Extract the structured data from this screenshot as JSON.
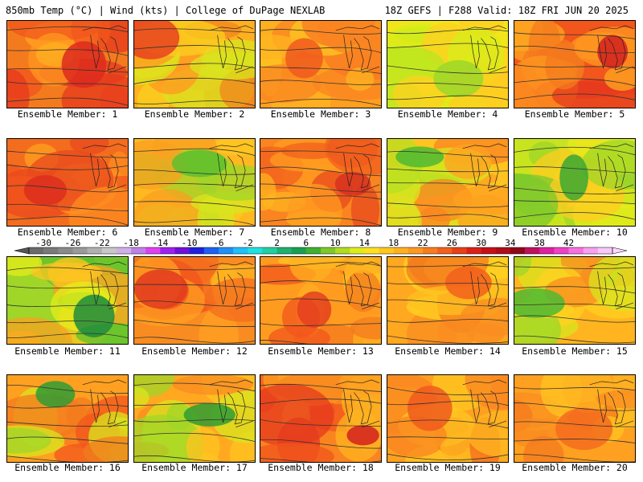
{
  "header": {
    "left": "850mb Temp (°C) | Wind (kts) | College of DuPage NEXLAB",
    "right": "18Z GEFS | F288 Valid: 18Z FRI JUN 20 2025"
  },
  "panels": [
    {
      "label": "Ensemble Member: 1",
      "palette": [
        "#f47a1e",
        "#f2561c",
        "#e63a1e",
        "#ff9820",
        "#ffb020"
      ],
      "core": "#dd2a1f"
    },
    {
      "label": "Ensemble Member: 2",
      "palette": [
        "#ffb020",
        "#f9d01e",
        "#d8e61e",
        "#f2861e",
        "#ff9820"
      ],
      "core": "#e8421e"
    },
    {
      "label": "Ensemble Member: 3",
      "palette": [
        "#ff9f20",
        "#ffb420",
        "#f98420",
        "#ffc820",
        "#f97820"
      ],
      "core": "#f05a1e"
    },
    {
      "label": "Ensemble Member: 4",
      "palette": [
        "#f2e61a",
        "#d8ec1a",
        "#ffcc20",
        "#b8e620",
        "#ffd020"
      ],
      "core": "#9ed62a"
    },
    {
      "label": "Ensemble Member: 5",
      "palette": [
        "#f2561c",
        "#f47a1e",
        "#ff9820",
        "#e63a1e",
        "#ffa820"
      ],
      "core": "#d42020"
    },
    {
      "label": "Ensemble Member: 6",
      "palette": [
        "#f46c1e",
        "#f2561c",
        "#ff8c20",
        "#ffa020",
        "#e84a1e"
      ],
      "core": "#dc2e1e"
    },
    {
      "label": "Ensemble Member: 7",
      "palette": [
        "#ffb820",
        "#d8e61e",
        "#9fd628",
        "#ffc820",
        "#f9a020"
      ],
      "core": "#5cbf2e"
    },
    {
      "label": "Ensemble Member: 8",
      "palette": [
        "#f98420",
        "#ff9c20",
        "#f2601c",
        "#ffb420",
        "#e84a1e"
      ],
      "core": "#d83020"
    },
    {
      "label": "Ensemble Member: 9",
      "palette": [
        "#ffc420",
        "#d8e61e",
        "#ffa020",
        "#b8e020",
        "#f98420"
      ],
      "core": "#4fb832"
    },
    {
      "label": "Ensemble Member: 10",
      "palette": [
        "#c8e41e",
        "#e6ec1a",
        "#9fd628",
        "#ffcc20",
        "#7cc82c"
      ],
      "core": "#3aa832"
    },
    {
      "label": "Ensemble Member: 11",
      "palette": [
        "#9fd628",
        "#ffc420",
        "#5cbf2e",
        "#f9a020",
        "#e6ec1a"
      ],
      "core": "#1f8c3c"
    },
    {
      "label": "Ensemble Member: 12",
      "palette": [
        "#f98c20",
        "#ffa020",
        "#f46c1e",
        "#ffb420",
        "#f2561c"
      ],
      "core": "#e23a1e"
    },
    {
      "label": "Ensemble Member: 13",
      "palette": [
        "#ff9c20",
        "#f47a1e",
        "#ffb020",
        "#f2561c",
        "#ffc420"
      ],
      "core": "#e4401e"
    },
    {
      "label": "Ensemble Member: 14",
      "palette": [
        "#ffa820",
        "#ffc020",
        "#f98c20",
        "#ffd420",
        "#f47a1e"
      ],
      "core": "#f2601c"
    },
    {
      "label": "Ensemble Member: 15",
      "palette": [
        "#ffb420",
        "#ffd020",
        "#d8e61e",
        "#f98c20",
        "#9fd628"
      ],
      "core": "#4fb832"
    },
    {
      "label": "Ensemble Member: 16",
      "palette": [
        "#ffa020",
        "#d8e61e",
        "#f47a1e",
        "#9fd628",
        "#f2561c"
      ],
      "core": "#2f9c34"
    },
    {
      "label": "Ensemble Member: 17",
      "palette": [
        "#ffa820",
        "#ffc420",
        "#d8e61e",
        "#f98c20",
        "#9fd628"
      ],
      "core": "#2f9c34"
    },
    {
      "label": "Ensemble Member: 18",
      "palette": [
        "#f98420",
        "#f2561c",
        "#ffa020",
        "#e63a1e",
        "#ffb420"
      ],
      "core": "#d42020"
    },
    {
      "label": "Ensemble Member: 19",
      "palette": [
        "#ffa020",
        "#f98420",
        "#ffb820",
        "#f46c1e",
        "#ffc820"
      ],
      "core": "#f05a1e"
    },
    {
      "label": "Ensemble Member: 20",
      "palette": [
        "#ffa020",
        "#ffb420",
        "#f98c20",
        "#ffc420",
        "#f47a1e"
      ],
      "core": "#f46c1e"
    }
  ],
  "colorbar": {
    "labels": [
      "-30",
      "-26",
      "-22",
      "-18",
      "-14",
      "-10",
      "-6",
      "-2",
      "2",
      "6",
      "10",
      "14",
      "18",
      "22",
      "26",
      "30",
      "34",
      "38",
      "42"
    ],
    "colors": [
      "#6b6b6b",
      "#7a7a7a",
      "#8a8a8a",
      "#9a9a9a",
      "#b0b0b0",
      "#c8c8c8",
      "#d0b0e8",
      "#c080e8",
      "#e040f0",
      "#a020f0",
      "#7010d8",
      "#2020e0",
      "#2060f0",
      "#2090f8",
      "#20c0f8",
      "#20e0e0",
      "#20d0a0",
      "#20b070",
      "#18a050",
      "#40b030",
      "#80c828",
      "#b0dc20",
      "#e0ec18",
      "#ffe020",
      "#ffc820",
      "#ffb020",
      "#ff9820",
      "#f87c1e",
      "#f2601c",
      "#e84018",
      "#dc2018",
      "#c81018",
      "#b00c18",
      "#900818",
      "#c01060",
      "#e020a0",
      "#f040c8",
      "#f870e0",
      "#f8a0f0",
      "#f8c8f8"
    ]
  }
}
